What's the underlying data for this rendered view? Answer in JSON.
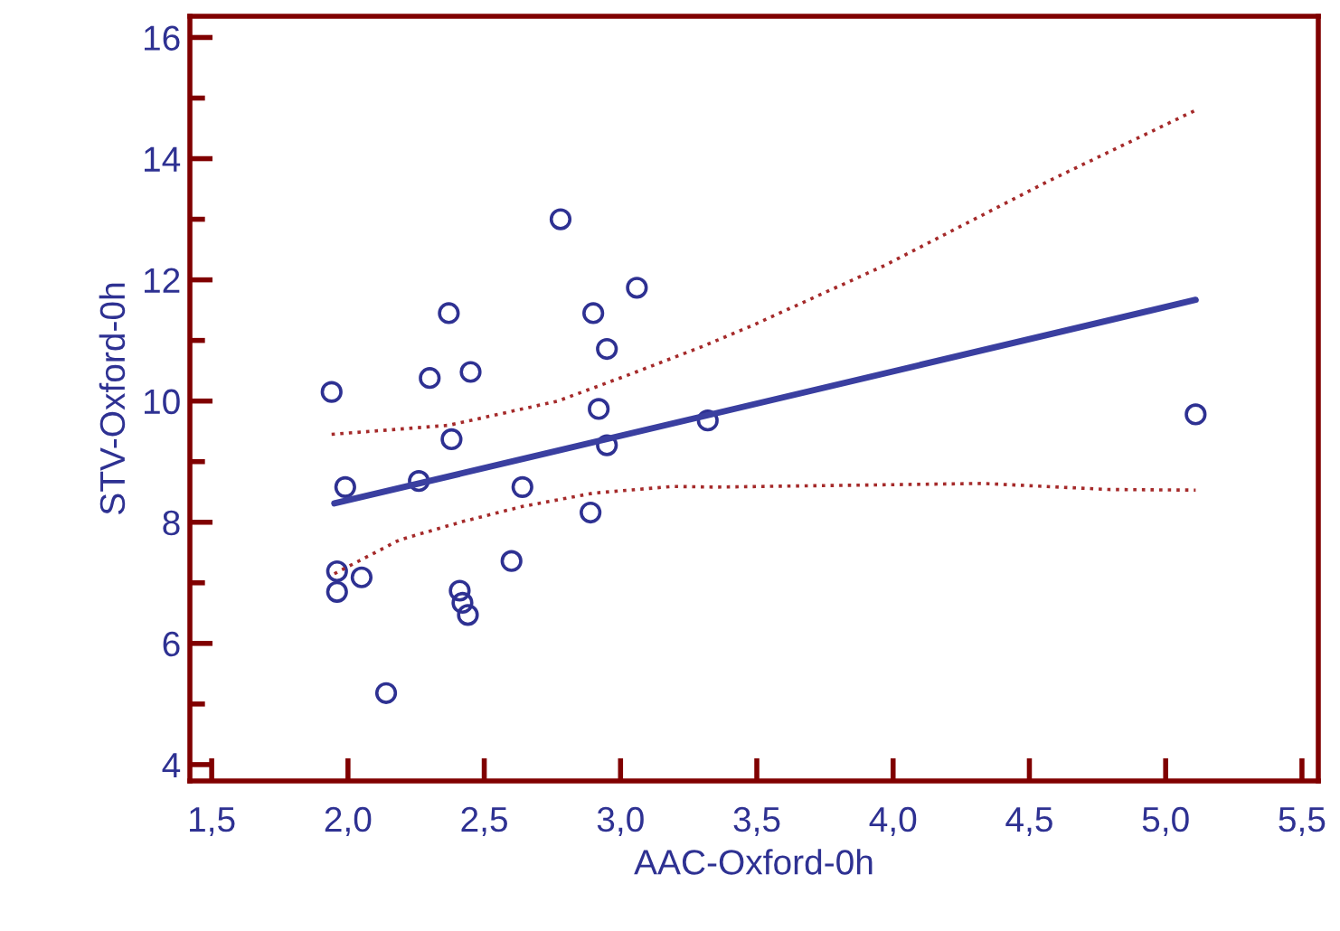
{
  "chart_data": {
    "type": "scatter",
    "xlabel": "AAC-Oxford-0h",
    "ylabel": "STV-Oxford-0h",
    "xlim": [
      1.42,
      5.56
    ],
    "ylim": [
      3.73,
      16.35
    ],
    "xticks": [
      {
        "value": 1.5,
        "label": "1,5"
      },
      {
        "value": 2.0,
        "label": "2,0"
      },
      {
        "value": 2.5,
        "label": "2,5"
      },
      {
        "value": 3.0,
        "label": "3,0"
      },
      {
        "value": 3.5,
        "label": "3,5"
      },
      {
        "value": 4.0,
        "label": "4,0"
      },
      {
        "value": 4.5,
        "label": "4,5"
      },
      {
        "value": 5.0,
        "label": "5,0"
      },
      {
        "value": 5.5,
        "label": "5,5"
      }
    ],
    "yticks": [
      4,
      {
        "value": 5,
        "label": null
      },
      6,
      {
        "value": 7,
        "label": null
      },
      8,
      {
        "value": 9,
        "label": null
      },
      10,
      {
        "value": 11,
        "label": null
      },
      12,
      {
        "value": 13,
        "label": null
      },
      14,
      {
        "value": 15,
        "label": null
      },
      16
    ],
    "grid": false,
    "series": [
      {
        "marker": "circle",
        "color": "#2e3192",
        "x": [
          1.94,
          2.3,
          2.37,
          2.45,
          2.78,
          2.9,
          3.06,
          2.95,
          2.92,
          2.38,
          2.95,
          1.99,
          2.26,
          2.64,
          2.89,
          1.96,
          1.96,
          2.05,
          2.6,
          2.41,
          2.42,
          2.44,
          2.14,
          3.32,
          5.11
        ],
        "values": [
          10.15,
          10.38,
          11.45,
          10.48,
          13.0,
          11.45,
          11.87,
          10.86,
          9.87,
          9.37,
          9.27,
          8.58,
          8.68,
          8.58,
          8.16,
          7.19,
          6.85,
          7.09,
          7.36,
          6.87,
          6.67,
          6.47,
          5.18,
          9.68,
          9.78
        ]
      },
      {
        "type": "line",
        "line_style": "solid",
        "color": "#3a3fa0",
        "x": [
          1.95,
          5.11
        ],
        "values": [
          8.31,
          11.67
        ]
      },
      {
        "type": "line",
        "line_style": "dotted",
        "color": "#a52a2a",
        "x": [
          1.94,
          2.37,
          2.77,
          3.04,
          3.3,
          3.48,
          3.97,
          4.57,
          5.11
        ],
        "values": [
          9.45,
          9.6,
          10.0,
          10.45,
          10.9,
          11.24,
          12.24,
          13.63,
          14.8
        ]
      },
      {
        "type": "line",
        "line_style": "dotted",
        "color": "#a52a2a",
        "x": [
          1.95,
          2.19,
          2.42,
          2.64,
          2.9,
          3.19,
          3.35,
          4.33,
          4.79,
          5.11
        ],
        "values": [
          7.15,
          7.71,
          8.01,
          8.26,
          8.48,
          8.59,
          8.58,
          8.64,
          8.54,
          8.53
        ]
      }
    ]
  }
}
